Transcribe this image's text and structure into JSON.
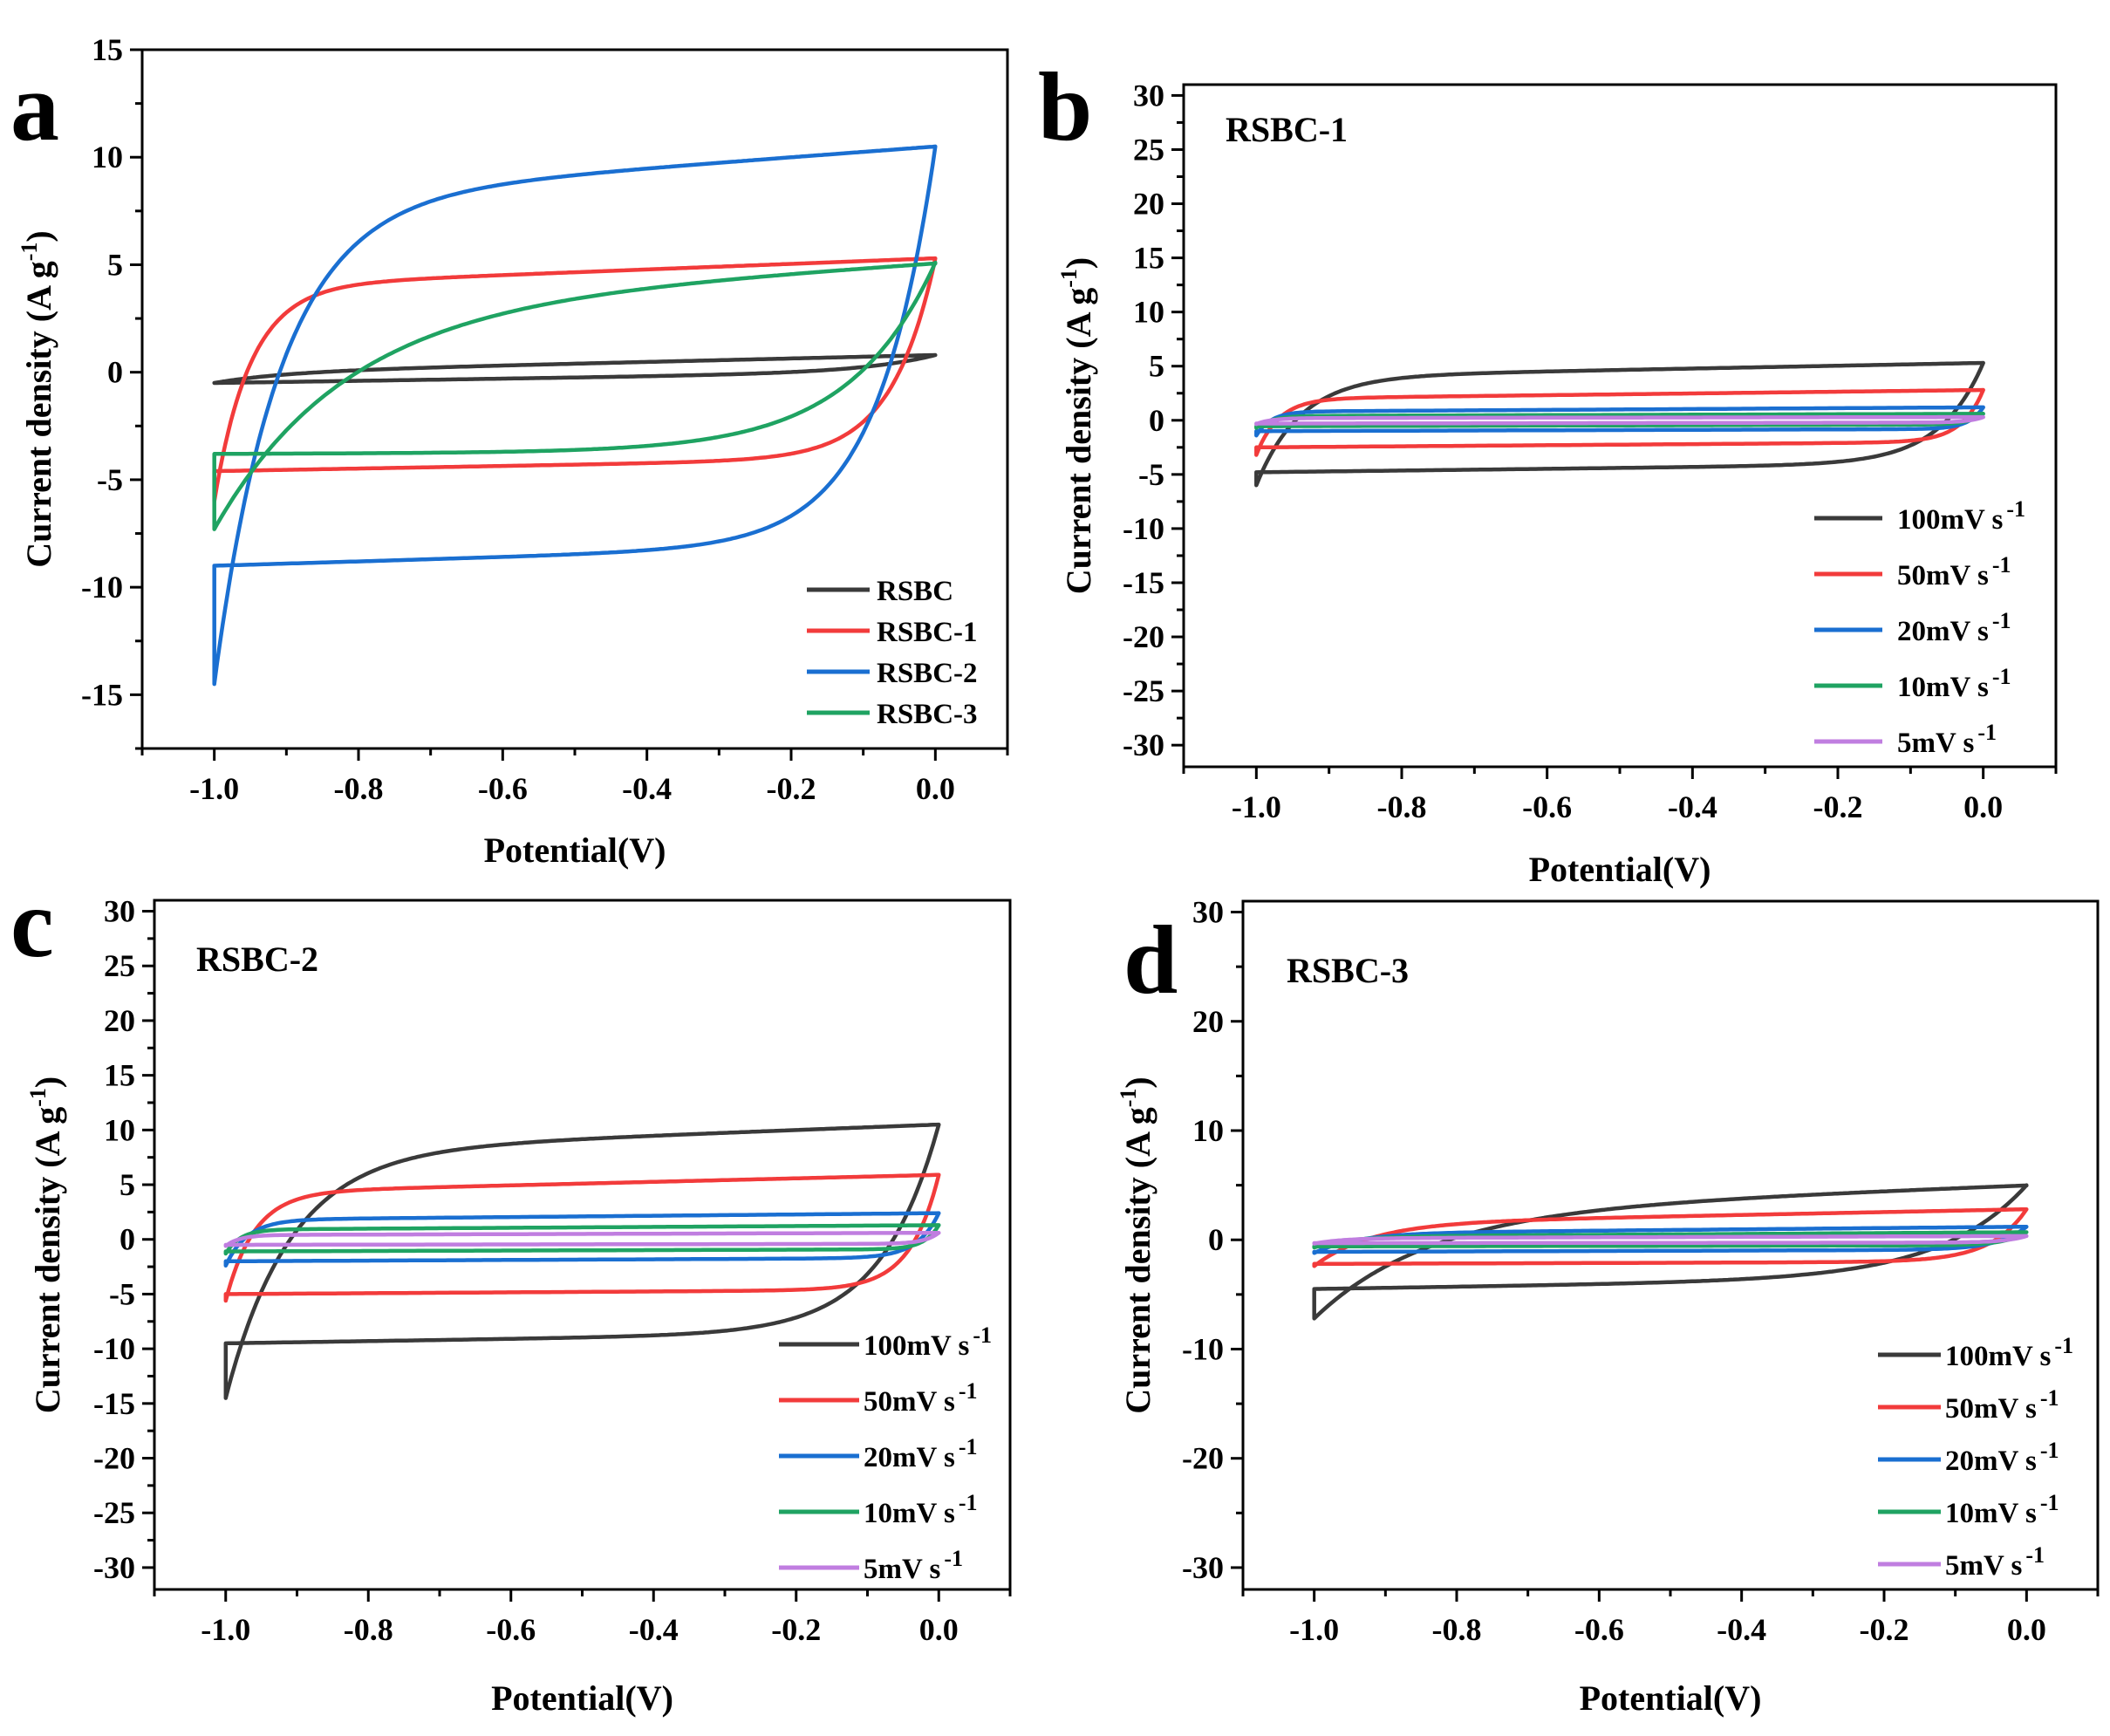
{
  "figure_id": "cv-curves-figure",
  "colors": {
    "black": "#3a3a3a",
    "red": "#f23b3b",
    "blue": "#1a6fd1",
    "green": "#1fa362",
    "violet": "#c07ee0"
  },
  "chart_data": [
    {
      "panel": "a",
      "type": "line",
      "title": "",
      "xlabel": "Potential(V)",
      "ylabel": "Current density (A g-1)",
      "ylabel_main": "Current density (A g",
      "ylabel_sup": "-1",
      "ylabel_tail": ")",
      "xlim": [
        -1.1,
        0.1
      ],
      "ylim": [
        -17.5,
        15
      ],
      "xticks": [
        -1.0,
        -0.8,
        -0.6,
        -0.4,
        -0.2,
        0.0
      ],
      "xtick_labels": [
        "-1.0",
        "-0.8",
        "-0.6",
        "-0.4",
        "-0.2",
        "0.0"
      ],
      "yticks": [
        -15,
        -10,
        -5,
        0,
        5,
        10,
        15
      ],
      "ytick_labels": [
        "-15",
        "-10",
        "-5",
        "0",
        "5",
        "10",
        "15"
      ],
      "legend_position": "bottom-right",
      "series": [
        {
          "name": "RSBC",
          "legend_label": "RSBC",
          "color_key": "black",
          "params": {
            "a_top": 0.0,
            "b_top": 0.8,
            "a_bot": -0.5,
            "b_bot": 0.0,
            "y_start": -0.5,
            "y_end": 0.8,
            "k_top": 0.1,
            "k_bot": 0.1,
            "x_ret": 0.95
          }
        },
        {
          "name": "RSBC-1",
          "legend_label": "RSBC-1",
          "color_key": "red",
          "params": {
            "a_top": 4.0,
            "b_top": 5.3,
            "a_bot": -4.6,
            "b_bot": -4.0,
            "y_start": -6.0,
            "y_end": 5.3,
            "k_top": 0.05,
            "k_bot": 0.06,
            "x_ret": 0.8
          }
        },
        {
          "name": "RSBC-2",
          "legend_label": "RSBC-2",
          "color_key": "blue",
          "params": {
            "a_top": 8.0,
            "b_top": 10.5,
            "a_bot": -9.0,
            "b_bot": -8.0,
            "y_start": -14.5,
            "y_end": 10.5,
            "k_top": 0.09,
            "k_bot": 0.08,
            "x_ret": 0.9
          }
        },
        {
          "name": "RSBC-3",
          "legend_label": "RSBC-3",
          "color_key": "green",
          "params": {
            "a_top": 3.0,
            "b_top": 5.1,
            "a_bot": -3.8,
            "b_bot": -3.7,
            "y_start": -7.3,
            "y_end": 5.1,
            "k_top": 0.18,
            "k_bot": 0.12,
            "x_ret": 1.5
          }
        }
      ]
    },
    {
      "panel": "b",
      "type": "line",
      "title": "RSBC-1",
      "xlabel": "Potential(V)",
      "ylabel": "Current density (A g-1)",
      "ylabel_main": "Current density (A g",
      "ylabel_sup": "-1",
      "ylabel_tail": ")",
      "xlim": [
        -1.1,
        0.1
      ],
      "ylim": [
        -32,
        31
      ],
      "xticks": [
        -1.0,
        -0.8,
        -0.6,
        -0.4,
        -0.2,
        0.0
      ],
      "xtick_labels": [
        "-1.0",
        "-0.8",
        "-0.6",
        "-0.4",
        "-0.2",
        "0.0"
      ],
      "yticks": [
        -30,
        -25,
        -20,
        -15,
        -10,
        -5,
        0,
        5,
        10,
        15,
        20,
        25,
        30
      ],
      "ytick_labels": [
        "-30",
        "-25",
        "-20",
        "-15",
        "-10",
        "-5",
        "0",
        "5",
        "10",
        "15",
        "20",
        "25",
        "30"
      ],
      "legend_position": "bottom-right",
      "series": [
        {
          "name": "100mV s-1",
          "legend_label": "100mV s",
          "legend_sup": "-1",
          "color_key": "black",
          "params": {
            "a_top": 4.0,
            "b_top": 5.3,
            "a_bot": -4.8,
            "b_bot": -4.0,
            "y_start": -6.0,
            "y_end": 5.3,
            "k_top": 0.06,
            "k_bot": 0.06,
            "x_ret": 0.8
          }
        },
        {
          "name": "50mV s-1",
          "legend_label": "50mV s",
          "legend_sup": "-1",
          "color_key": "red",
          "params": {
            "a_top": 2.0,
            "b_top": 2.8,
            "a_bot": -2.5,
            "b_bot": -2.0,
            "y_start": -3.2,
            "y_end": 2.8,
            "k_top": 0.03,
            "k_bot": 0.03,
            "x_ret": 0.5
          }
        },
        {
          "name": "20mV s-1",
          "legend_label": "20mV s",
          "legend_sup": "-1",
          "color_key": "blue",
          "params": {
            "a_top": 0.8,
            "b_top": 1.2,
            "a_bot": -1.0,
            "b_bot": -0.8,
            "y_start": -1.4,
            "y_end": 1.2,
            "k_top": 0.02,
            "k_bot": 0.02,
            "x_ret": 0.3
          }
        },
        {
          "name": "10mV s-1",
          "legend_label": "10mV s",
          "legend_sup": "-1",
          "color_key": "green",
          "params": {
            "a_top": 0.4,
            "b_top": 0.6,
            "a_bot": -0.55,
            "b_bot": -0.4,
            "y_start": -0.7,
            "y_end": 0.6,
            "k_top": 0.02,
            "k_bot": 0.02,
            "x_ret": 0.2
          }
        },
        {
          "name": "5mV s-1",
          "legend_label": "5mV s",
          "legend_sup": "-1",
          "color_key": "violet",
          "params": {
            "a_top": 0.2,
            "b_top": 0.3,
            "a_bot": -0.3,
            "b_bot": -0.2,
            "y_start": -0.35,
            "y_end": 0.3,
            "k_top": 0.02,
            "k_bot": 0.02,
            "x_ret": 0.1
          }
        }
      ]
    },
    {
      "panel": "c",
      "type": "line",
      "title": "RSBC-2",
      "xlabel": "Potential(V)",
      "ylabel": "Current density (A g-1)",
      "ylabel_main": "Current density (A g",
      "ylabel_sup": "-1",
      "ylabel_tail": ")",
      "xlim": [
        -1.1,
        0.1
      ],
      "ylim": [
        -32,
        31
      ],
      "xticks": [
        -1.0,
        -0.8,
        -0.6,
        -0.4,
        -0.2,
        0.0
      ],
      "xtick_labels": [
        "-1.0",
        "-0.8",
        "-0.6",
        "-0.4",
        "-0.2",
        "0.0"
      ],
      "yticks": [
        -30,
        -25,
        -20,
        -15,
        -10,
        -5,
        0,
        5,
        10,
        15,
        20,
        25,
        30
      ],
      "ytick_labels": [
        "-30",
        "-25",
        "-20",
        "-15",
        "-10",
        "-5",
        "0",
        "5",
        "10",
        "15",
        "20",
        "25",
        "30"
      ],
      "legend_position": "bottom-right",
      "series": [
        {
          "name": "100mV s-1",
          "legend_label": "100mV s",
          "legend_sup": "-1",
          "color_key": "black",
          "params": {
            "a_top": 8.0,
            "b_top": 10.5,
            "a_bot": -9.5,
            "b_bot": -8.5,
            "y_start": -14.5,
            "y_end": 10.5,
            "k_top": 0.09,
            "k_bot": 0.08,
            "x_ret": 0.9
          }
        },
        {
          "name": "50mV s-1",
          "legend_label": "50mV s",
          "legend_sup": "-1",
          "color_key": "red",
          "params": {
            "a_top": 4.3,
            "b_top": 5.9,
            "a_bot": -5.0,
            "b_bot": -4.6,
            "y_start": -5.6,
            "y_end": 5.9,
            "k_top": 0.04,
            "k_bot": 0.04,
            "x_ret": 0.5
          }
        },
        {
          "name": "20mV s-1",
          "legend_label": "20mV s",
          "legend_sup": "-1",
          "color_key": "blue",
          "params": {
            "a_top": 1.8,
            "b_top": 2.4,
            "a_bot": -2.0,
            "b_bot": -1.7,
            "y_start": -2.4,
            "y_end": 2.4,
            "k_top": 0.03,
            "k_bot": 0.03,
            "x_ret": 0.3
          }
        },
        {
          "name": "10mV s-1",
          "legend_label": "10mV s",
          "legend_sup": "-1",
          "color_key": "green",
          "params": {
            "a_top": 0.9,
            "b_top": 1.3,
            "a_bot": -1.1,
            "b_bot": -0.9,
            "y_start": -1.3,
            "y_end": 1.3,
            "k_top": 0.02,
            "k_bot": 0.02,
            "x_ret": 0.2
          }
        },
        {
          "name": "5mV s-1",
          "legend_label": "5mV s",
          "legend_sup": "-1",
          "color_key": "violet",
          "params": {
            "a_top": 0.4,
            "b_top": 0.6,
            "a_bot": -0.5,
            "b_bot": -0.4,
            "y_start": -0.6,
            "y_end": 0.6,
            "k_top": 0.02,
            "k_bot": 0.02,
            "x_ret": 0.1
          }
        }
      ]
    },
    {
      "panel": "d",
      "type": "line",
      "title": "RSBC-3",
      "xlabel": "Potential(V)",
      "ylabel": "Current density (A g-1)",
      "ylabel_main": "Current density (A g",
      "ylabel_sup": "-1",
      "ylabel_tail": ")",
      "xlim": [
        -1.1,
        0.1
      ],
      "ylim": [
        -32,
        31
      ],
      "xticks": [
        -1.0,
        -0.8,
        -0.6,
        -0.4,
        -0.2,
        0.0
      ],
      "xtick_labels": [
        "-1.0",
        "-0.8",
        "-0.6",
        "-0.4",
        "-0.2",
        "0.0"
      ],
      "yticks": [
        -30,
        -20,
        -10,
        0,
        10,
        20,
        30
      ],
      "ytick_labels": [
        "-30",
        "-20",
        "-10",
        "0",
        "10",
        "20",
        "30"
      ],
      "legend_position": "bottom-right",
      "series": [
        {
          "name": "100mV s-1",
          "legend_label": "100mV s",
          "legend_sup": "-1",
          "color_key": "black",
          "params": {
            "a_top": 2.5,
            "b_top": 5.0,
            "a_bot": -4.5,
            "b_bot": -3.5,
            "y_start": -7.2,
            "y_end": 5.0,
            "k_top": 0.16,
            "k_bot": 0.12,
            "x_ret": 1.5
          }
        },
        {
          "name": "50mV s-1",
          "legend_label": "50mV s",
          "legend_sup": "-1",
          "color_key": "red",
          "params": {
            "a_top": 1.5,
            "b_top": 2.8,
            "a_bot": -2.2,
            "b_bot": -2.0,
            "y_start": -2.4,
            "y_end": 2.8,
            "k_top": 0.08,
            "k_bot": 0.05,
            "x_ret": 0.8
          }
        },
        {
          "name": "20mV s-1",
          "legend_label": "20mV s",
          "legend_sup": "-1",
          "color_key": "blue",
          "params": {
            "a_top": 0.6,
            "b_top": 1.2,
            "a_bot": -1.1,
            "b_bot": -0.9,
            "y_start": -1.2,
            "y_end": 1.2,
            "k_top": 0.06,
            "k_bot": 0.04,
            "x_ret": 0.5
          }
        },
        {
          "name": "10mV s-1",
          "legend_label": "10mV s",
          "legend_sup": "-1",
          "color_key": "green",
          "params": {
            "a_top": 0.3,
            "b_top": 0.7,
            "a_bot": -0.6,
            "b_bot": -0.5,
            "y_start": -0.7,
            "y_end": 0.7,
            "k_top": 0.05,
            "k_bot": 0.03,
            "x_ret": 0.3
          }
        },
        {
          "name": "5mV s-1",
          "legend_label": "5mV s",
          "legend_sup": "-1",
          "color_key": "violet",
          "params": {
            "a_top": 0.15,
            "b_top": 0.35,
            "a_bot": -0.3,
            "b_bot": -0.25,
            "y_start": -0.35,
            "y_end": 0.35,
            "k_top": 0.04,
            "k_bot": 0.03,
            "x_ret": 0.15
          }
        }
      ]
    }
  ]
}
